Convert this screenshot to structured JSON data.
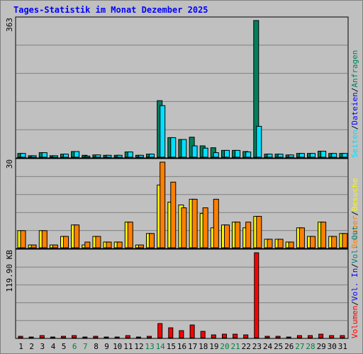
{
  "window_title": "Tages-Statistik im Monat Dezember 2025",
  "colors": {
    "background": "#c0c0c0",
    "title": "#0000ff",
    "anfragen": "#00805c",
    "dateien": "#0000ff",
    "seiten": "#00e0ff",
    "besuche": "#f8f800",
    "rechner": "#ff8000",
    "vol_out": "#008080",
    "vol_in": "#0000ff",
    "volumen": "#ff0000",
    "weekday_label": "#000000",
    "weekend_label": "#008040",
    "grid": "#808080"
  },
  "chart_data": [
    {
      "type": "bar",
      "panel": "requests",
      "y_max_label": "363",
      "ylim": [
        0,
        363
      ],
      "categories": [
        "1",
        "2",
        "3",
        "4",
        "5",
        "6",
        "7",
        "8",
        "9",
        "10",
        "11",
        "12",
        "13",
        "14",
        "15",
        "16",
        "17",
        "18",
        "19",
        "20",
        "21",
        "22",
        "23",
        "24",
        "25",
        "26",
        "27",
        "28",
        "29",
        "30",
        "31"
      ],
      "legend": [
        {
          "label": "Anfragen",
          "color": "#00805c"
        },
        {
          "label": "Dateien",
          "color": "#0000ff"
        },
        {
          "label": "Seiten",
          "color": "#00e0ff"
        }
      ],
      "series": [
        {
          "name": "Anfragen",
          "values": [
            10,
            4,
            12,
            4,
            8,
            15,
            5,
            6,
            5,
            5,
            14,
            5,
            8,
            150,
            52,
            47,
            53,
            30,
            25,
            18,
            18,
            15,
            363,
            8,
            8,
            6,
            10,
            10,
            16,
            10,
            10
          ]
        },
        {
          "name": "Seiten",
          "values": [
            10,
            4,
            12,
            4,
            8,
            15,
            3,
            6,
            5,
            5,
            14,
            5,
            8,
            137,
            52,
            47,
            30,
            24,
            12,
            18,
            18,
            14,
            82,
            8,
            8,
            6,
            10,
            10,
            16,
            10,
            10
          ]
        }
      ]
    },
    {
      "type": "bar",
      "panel": "visits",
      "y_max_label": "30",
      "ylim": [
        0,
        30
      ],
      "legend": [
        {
          "label": "Besuche",
          "color": "#f8f800"
        },
        {
          "label": "Rechner",
          "color": "#ff8000"
        }
      ],
      "series": [
        {
          "name": "Besuche",
          "values": [
            6,
            1,
            6,
            1,
            4,
            8,
            1,
            4,
            2,
            2,
            9,
            1,
            5,
            22,
            16,
            15,
            17,
            12,
            7,
            8,
            9,
            7,
            11,
            3,
            3,
            2,
            7,
            4,
            9,
            4,
            5
          ]
        },
        {
          "name": "Rechner",
          "values": [
            6,
            1,
            6,
            1,
            4,
            8,
            2,
            4,
            2,
            2,
            9,
            1,
            5,
            30,
            23,
            14,
            17,
            14,
            17,
            8,
            9,
            9,
            11,
            3,
            3,
            2,
            7,
            4,
            9,
            4,
            5
          ]
        }
      ]
    },
    {
      "type": "bar",
      "panel": "volume",
      "y_max_label": "119.90 KB",
      "ylim": [
        0,
        119.9
      ],
      "legend": [
        {
          "label": "Volumen",
          "color": "#ff0000"
        },
        {
          "label": "Vol. In",
          "color": "#0000ff"
        },
        {
          "label": "Vol. Out",
          "color": "#008080"
        }
      ],
      "series": [
        {
          "name": "Volumen",
          "values": [
            2,
            1,
            3,
            1,
            2,
            3,
            1,
            2,
            1,
            1,
            3,
            1,
            2,
            20,
            14,
            10,
            18,
            9,
            4,
            5,
            5,
            4,
            119.9,
            2,
            2,
            1,
            3,
            3,
            5,
            3,
            3
          ]
        }
      ]
    }
  ],
  "x_labels": [
    "1",
    "2",
    "3",
    "4",
    "5",
    "6",
    "7",
    "8",
    "9",
    "10",
    "11",
    "12",
    "13",
    "14",
    "15",
    "16",
    "17",
    "18",
    "19",
    "20",
    "21",
    "22",
    "23",
    "24",
    "25",
    "26",
    "27",
    "28",
    "29",
    "30",
    "31"
  ],
  "weekend_days": [
    6,
    7,
    13,
    14,
    20,
    21,
    27,
    28
  ],
  "separators": "/"
}
